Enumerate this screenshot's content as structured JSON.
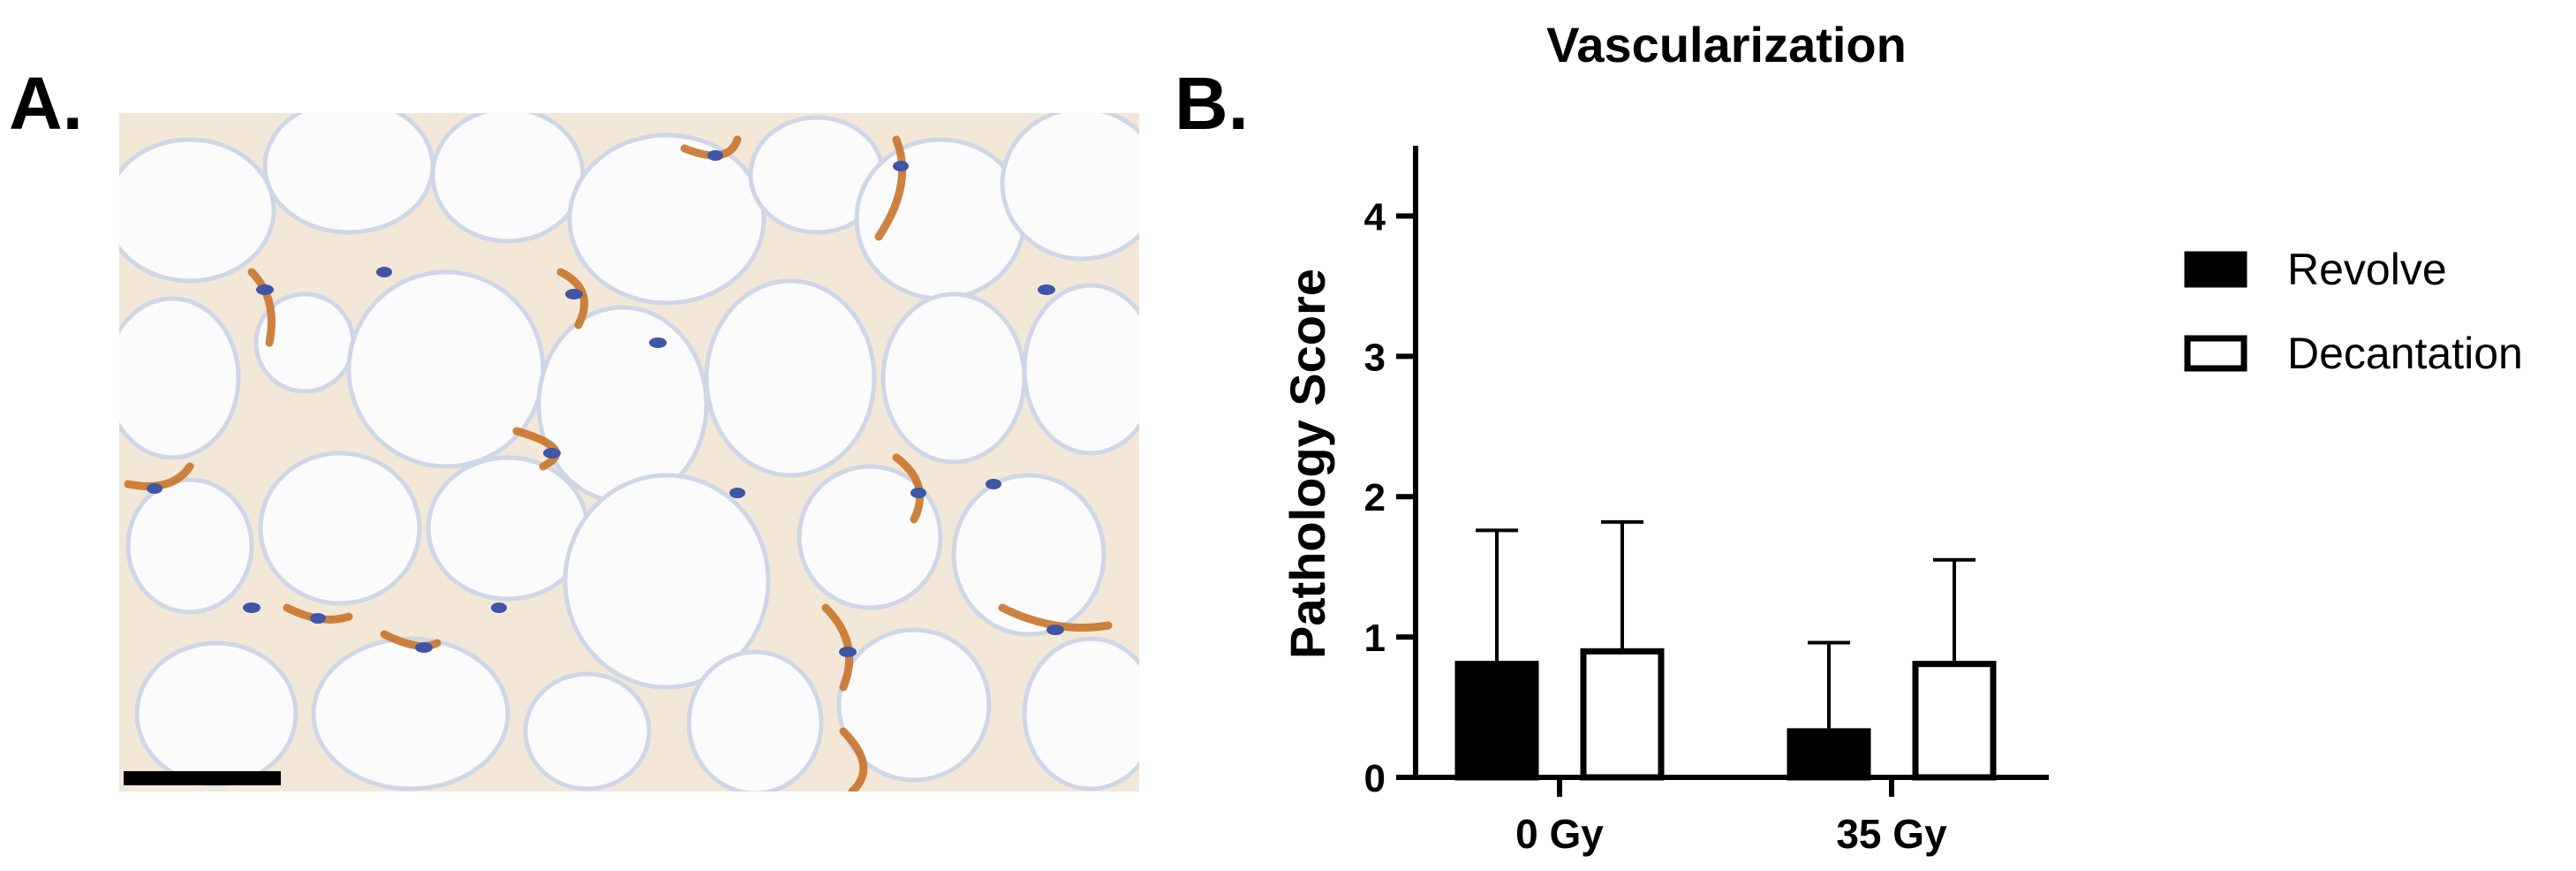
{
  "panels": {
    "a_label": "A.",
    "b_label": "B."
  },
  "micrograph": {
    "description_icon": "histology-image",
    "background_color": "#f7f5f0",
    "cell_outline_color": "#cfd6e6",
    "stain_color": "#c8742a",
    "nuclei_color": "#3f55a8",
    "scale_bar_color": "#000000"
  },
  "chart_data": {
    "type": "bar",
    "title": "Vascularization",
    "xlabel": "",
    "ylabel": "Pathology Score",
    "categories": [
      "0 Gy",
      "35 Gy"
    ],
    "ylim": [
      0,
      4.5
    ],
    "yticks": [
      0,
      1,
      2,
      3,
      4
    ],
    "grid": false,
    "legend_position": "right",
    "series": [
      {
        "name": "Revolve",
        "values": [
          0.83,
          0.35
        ],
        "errors": [
          0.93,
          0.61
        ],
        "fill": "#000000"
      },
      {
        "name": "Decantation",
        "values": [
          0.92,
          0.83
        ],
        "errors": [
          0.9,
          0.72
        ],
        "fill": "#ffffff"
      }
    ]
  }
}
